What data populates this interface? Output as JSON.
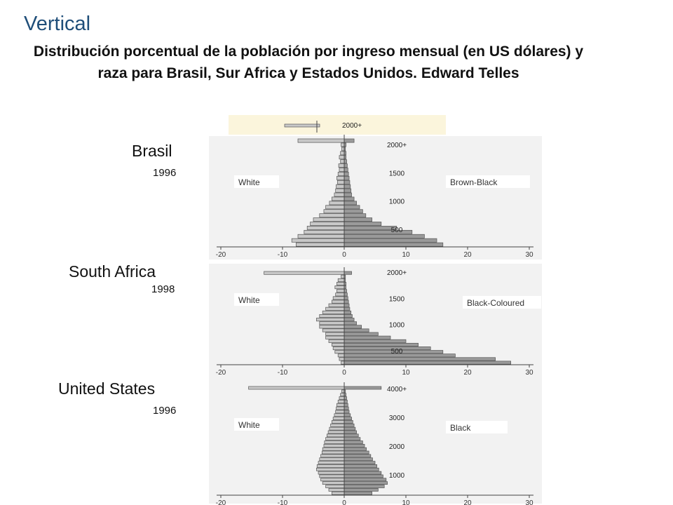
{
  "slide_label": "Vertical",
  "title": "Distribución porcentual de la población por ingreso mensual (en US dólares) y raza para Brasil, Sur Africa y Estados Unidos. Edward Telles",
  "top_strip_label": "2000+",
  "colors": {
    "slide_label": "#1f4e79",
    "left_bars": "#c8c8c8",
    "right_bars": "#9a9a9a"
  },
  "chart_data": [
    {
      "type": "bar",
      "orientation": "horizontal-butterfly",
      "country": "Brasil",
      "year": "1996",
      "x_ticks": [
        "-20",
        "-10",
        "0",
        "10",
        "20",
        "30"
      ],
      "xlim": [
        -20,
        30
      ],
      "y_tick_labels": [
        {
          "label": "2000+",
          "at": 2000
        },
        {
          "label": "1500",
          "at": 1500
        },
        {
          "label": "1000",
          "at": 1000
        },
        {
          "label": "500",
          "at": 500
        }
      ],
      "series": [
        {
          "name": "White",
          "side": "left",
          "values": [
            7.5,
            0.5,
            0.4,
            0.6,
            0.8,
            0.6,
            0.9,
            0.8,
            1.0,
            1.2,
            1.1,
            1.3,
            1.4,
            1.6,
            2.0,
            2.4,
            3.0,
            3.3,
            4.0,
            5.0,
            5.5,
            6.0,
            6.5,
            7.5,
            8.5,
            7.8
          ]
        },
        {
          "name": "Brown-Black",
          "side": "right",
          "values": [
            1.6,
            0.3,
            0.2,
            0.3,
            0.3,
            0.4,
            0.5,
            0.6,
            0.7,
            0.8,
            0.9,
            1.0,
            1.1,
            1.2,
            1.6,
            2.0,
            2.5,
            3.0,
            3.5,
            4.5,
            6.0,
            8.5,
            11.0,
            13.0,
            15.0,
            16.0
          ]
        }
      ]
    },
    {
      "type": "bar",
      "orientation": "horizontal-butterfly",
      "country": "South Africa",
      "year": "1998",
      "x_ticks": [
        "-20",
        "-10",
        "0",
        "10",
        "20",
        "30"
      ],
      "xlim": [
        -20,
        30
      ],
      "y_tick_labels": [
        {
          "label": "2000+",
          "at": 2000
        },
        {
          "label": "1500",
          "at": 1500
        },
        {
          "label": "1000",
          "at": 1000
        },
        {
          "label": "500",
          "at": 500
        }
      ],
      "series": [
        {
          "name": "White",
          "side": "left",
          "values": [
            13.0,
            0.5,
            1.0,
            1.2,
            1.5,
            1.2,
            1.4,
            1.8,
            2.0,
            2.5,
            3.0,
            3.5,
            4.0,
            4.5,
            4.0,
            4.0,
            3.5,
            3.0,
            3.0,
            2.5,
            2.0,
            1.8,
            1.5,
            1.0,
            0.8,
            0.5
          ]
        },
        {
          "name": "Black-Coloured",
          "side": "right",
          "values": [
            1.2,
            0.2,
            0.2,
            0.3,
            0.3,
            0.4,
            0.5,
            0.6,
            0.7,
            0.8,
            0.9,
            1.1,
            1.3,
            1.6,
            2.0,
            2.8,
            4.0,
            5.5,
            7.5,
            10.0,
            12.0,
            14.0,
            16.0,
            18.0,
            24.5,
            27.0
          ]
        }
      ]
    },
    {
      "type": "bar",
      "orientation": "horizontal-butterfly",
      "country": "United States",
      "year": "1996",
      "x_ticks": [
        "-20",
        "-10",
        "0",
        "10",
        "20",
        "30"
      ],
      "xlim": [
        -20,
        30
      ],
      "y_tick_labels": [
        {
          "label": "4000+",
          "at": 4000
        },
        {
          "label": "3000",
          "at": 3000
        },
        {
          "label": "2000",
          "at": 2000
        },
        {
          "label": "1000",
          "at": 1000
        }
      ],
      "series": [
        {
          "name": "White",
          "side": "left",
          "values": [
            15.5,
            0.4,
            0.6,
            0.8,
            1.0,
            1.2,
            1.3,
            1.4,
            1.6,
            1.8,
            2.0,
            2.2,
            2.4,
            2.6,
            2.8,
            3.0,
            3.2,
            3.3,
            3.5,
            3.6,
            3.8,
            4.0,
            4.2,
            4.4,
            4.5,
            4.2,
            4.0,
            3.8,
            3.5,
            3.0,
            2.5,
            2.0
          ]
        },
        {
          "name": "Black",
          "side": "right",
          "values": [
            6.0,
            0.2,
            0.3,
            0.4,
            0.5,
            0.6,
            0.7,
            0.8,
            1.0,
            1.2,
            1.4,
            1.6,
            1.8,
            2.0,
            2.3,
            2.6,
            3.0,
            3.3,
            3.6,
            4.0,
            4.3,
            4.6,
            5.0,
            5.3,
            5.6,
            6.0,
            6.3,
            6.8,
            7.0,
            6.5,
            5.5,
            4.5
          ]
        }
      ]
    }
  ]
}
